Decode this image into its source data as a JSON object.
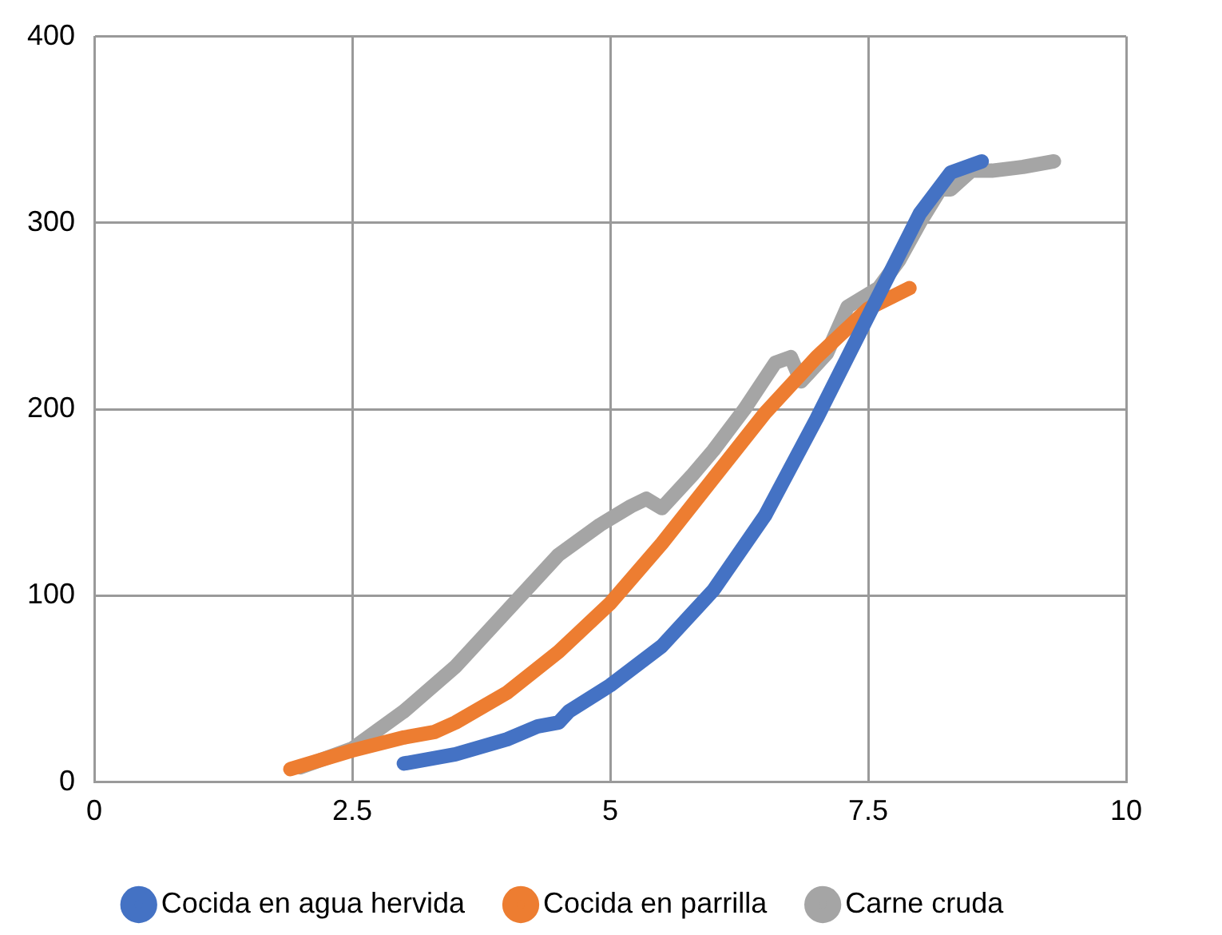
{
  "chart_data": {
    "type": "line",
    "xlim": [
      0,
      10
    ],
    "xticks": [
      0,
      2.5,
      5,
      7.5,
      10
    ],
    "ylim": [
      0,
      400
    ],
    "yticks": [
      0,
      100,
      200,
      300,
      400
    ],
    "grid": true,
    "legend": "bottom",
    "series": [
      {
        "name": "Cocida en agua hervida",
        "color": "#4472c4",
        "x": [
          3.0,
          3.5,
          4.0,
          4.3,
          4.5,
          4.6,
          5.0,
          5.5,
          6.0,
          6.5,
          7.0,
          7.5,
          8.0,
          8.3,
          8.6
        ],
        "values": [
          10,
          15,
          23,
          30,
          32,
          38,
          52,
          73,
          103,
          143,
          195,
          250,
          305,
          327,
          333
        ]
      },
      {
        "name": "Cocida en parrilla",
        "color": "#ed7d31",
        "x": [
          1.9,
          2.5,
          3.0,
          3.3,
          3.5,
          4.0,
          4.5,
          5.0,
          5.5,
          6.0,
          6.5,
          7.0,
          7.5,
          7.9
        ],
        "values": [
          7,
          17,
          24,
          27,
          32,
          48,
          70,
          96,
          128,
          163,
          198,
          228,
          254,
          265
        ]
      },
      {
        "name": "Carne cruda",
        "color": "#a5a5a5",
        "x": [
          2.0,
          2.5,
          3.0,
          3.5,
          4.0,
          4.5,
          4.9,
          5.2,
          5.35,
          5.5,
          5.8,
          6.0,
          6.3,
          6.6,
          6.75,
          6.85,
          7.1,
          7.3,
          7.6,
          7.8,
          8.0,
          8.2,
          8.3,
          8.5,
          8.7,
          9.0,
          9.3
        ],
        "values": [
          8,
          18,
          38,
          62,
          92,
          122,
          138,
          148,
          152,
          147,
          165,
          178,
          200,
          225,
          228,
          215,
          230,
          255,
          265,
          280,
          300,
          318,
          318,
          328,
          328,
          330,
          333
        ]
      }
    ]
  }
}
